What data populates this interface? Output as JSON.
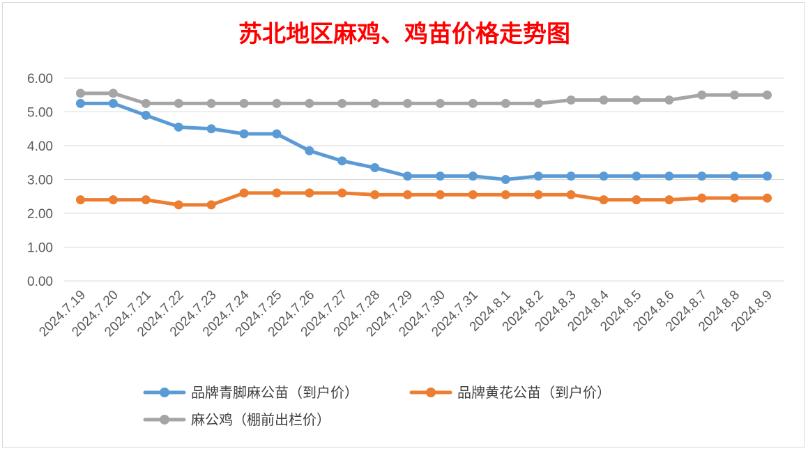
{
  "chart_data": {
    "type": "line",
    "title": "苏北地区麻鸡、鸡苗价格走势图",
    "xlabel": "",
    "ylabel": "",
    "ylim": [
      0,
      6
    ],
    "yticks": [
      "0.00",
      "1.00",
      "2.00",
      "3.00",
      "4.00",
      "5.00",
      "6.00"
    ],
    "grid": true,
    "legend_position": "bottom",
    "categories": [
      "2024.7.19",
      "2024.7.20",
      "2024.7.21",
      "2024.7.22",
      "2024.7.23",
      "2024.7.24",
      "2024.7.25",
      "2024.7.26",
      "2024.7.27",
      "2024.7.28",
      "2024.7.29",
      "2024.7.30",
      "2024.7.31",
      "2024.8.1",
      "2024.8.2",
      "2024.8.3",
      "2024.8.4",
      "2024.8.5",
      "2024.8.6",
      "2024.8.7",
      "2024.8.8",
      "2024.8.9"
    ],
    "series": [
      {
        "name": "品牌青脚麻公苗（到户价）",
        "color": "#5b9bd5",
        "values": [
          5.25,
          5.25,
          4.9,
          4.55,
          4.5,
          4.35,
          4.35,
          3.85,
          3.55,
          3.35,
          3.1,
          3.1,
          3.1,
          3.0,
          3.1,
          3.1,
          3.1,
          3.1,
          3.1,
          3.1,
          3.1,
          3.1
        ]
      },
      {
        "name": "品牌黄花公苗（到户价）",
        "color": "#ed7d31",
        "values": [
          2.4,
          2.4,
          2.4,
          2.25,
          2.25,
          2.6,
          2.6,
          2.6,
          2.6,
          2.55,
          2.55,
          2.55,
          2.55,
          2.55,
          2.55,
          2.55,
          2.4,
          2.4,
          2.4,
          2.45,
          2.45,
          2.45
        ]
      },
      {
        "name": "麻公鸡（棚前出栏价）",
        "color": "#a5a5a5",
        "values": [
          5.55,
          5.55,
          5.25,
          5.25,
          5.25,
          5.25,
          5.25,
          5.25,
          5.25,
          5.25,
          5.25,
          5.25,
          5.25,
          5.25,
          5.25,
          5.35,
          5.35,
          5.35,
          5.35,
          5.5,
          5.5,
          5.5
        ]
      }
    ]
  }
}
